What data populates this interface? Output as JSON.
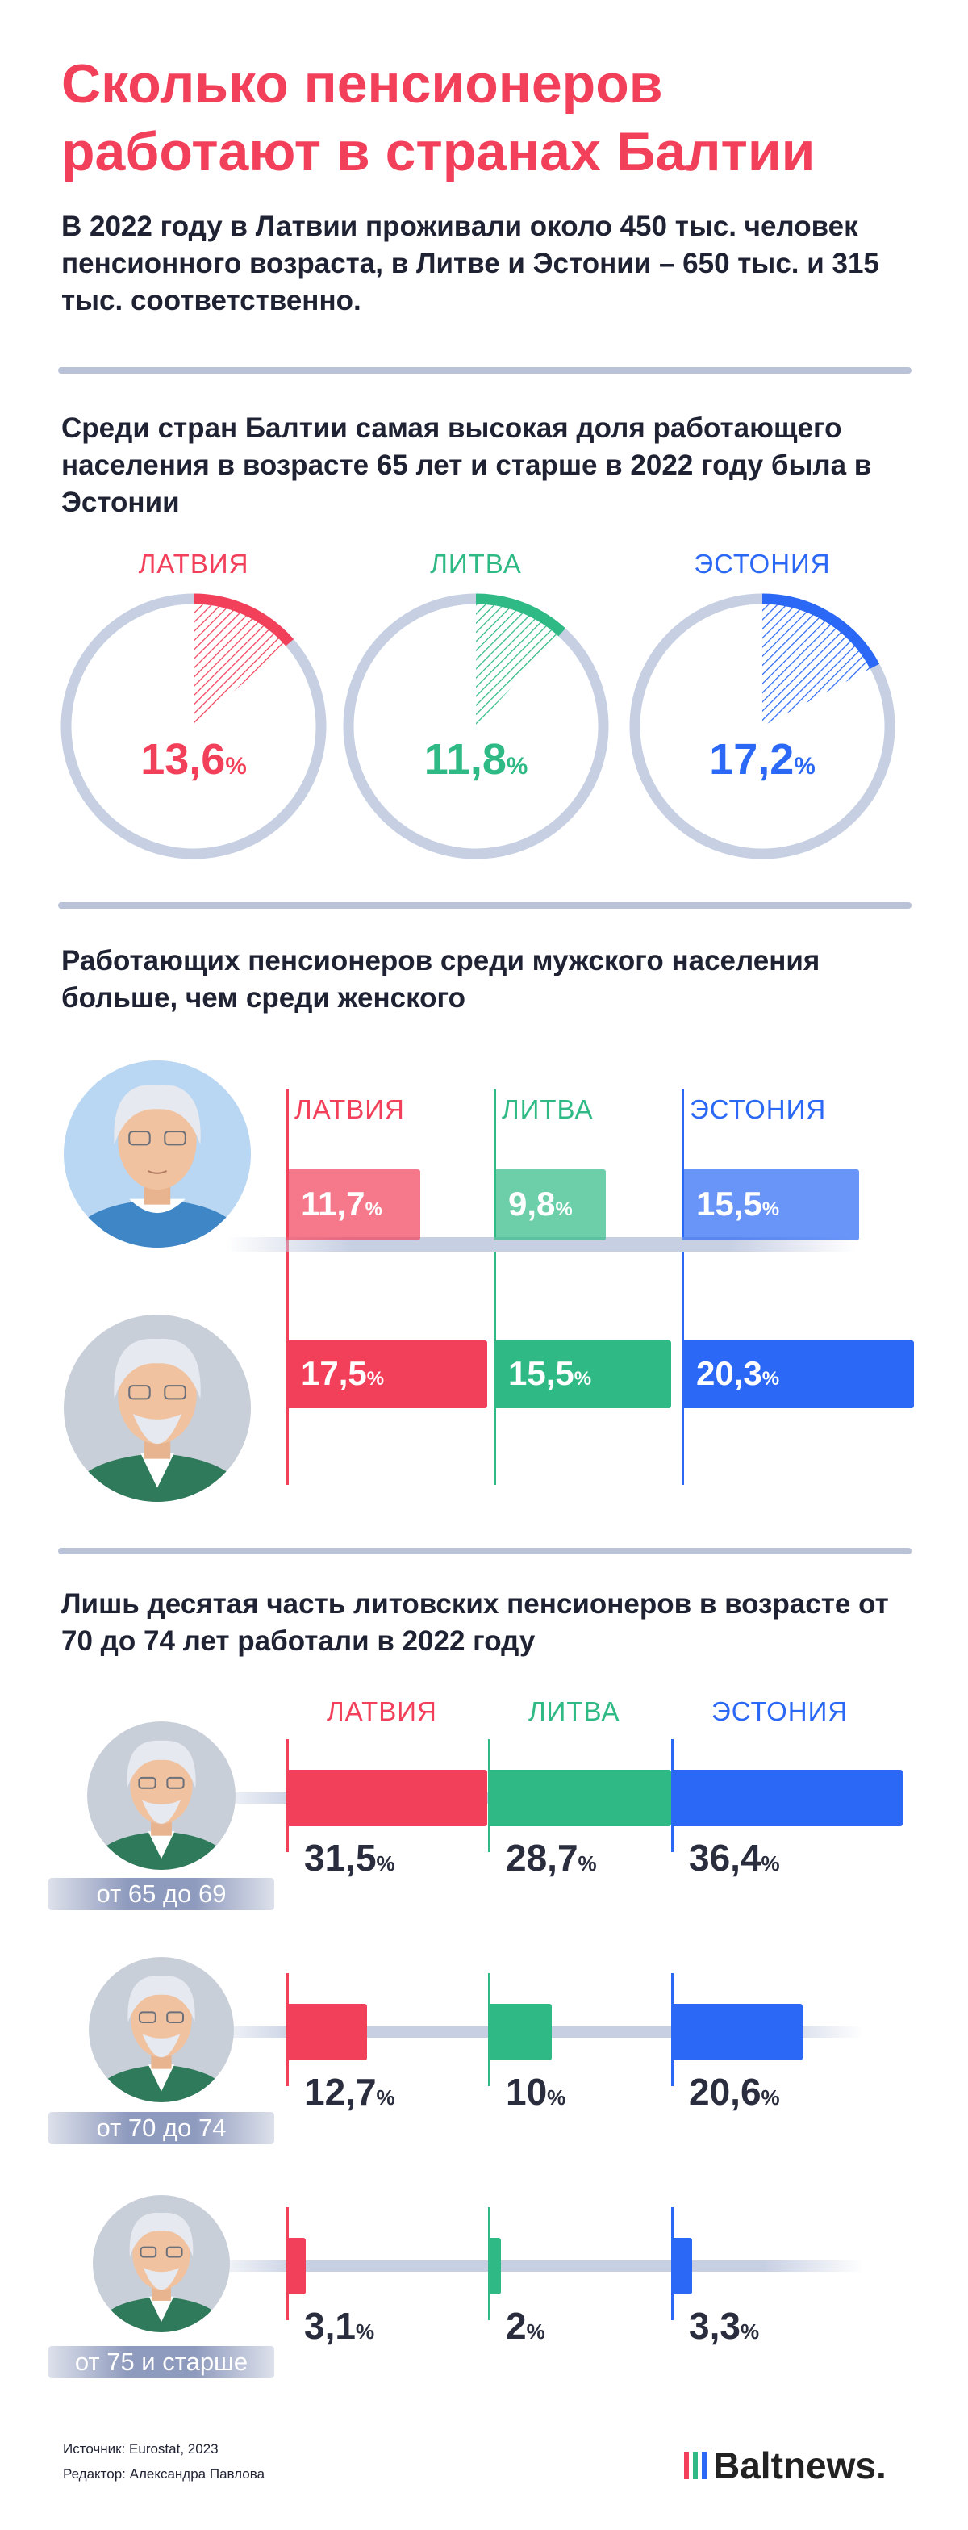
{
  "title": "Сколько пенсионеров работают в странах Балтии",
  "intro": "В 2022 году в Латвии проживали около 450 тыс. человек пенсионного возраста, в Литве и Эстонии – 650 тыс. и 315 тыс. соответственно.",
  "section1": {
    "title": "Среди стран Балтии самая высокая доля работающего населения в возрасте 65 лет и старше в 2022 году была в Эстонии"
  },
  "section2": {
    "title": "Работающих пенсионеров среди мужского населения больше, чем среди женского"
  },
  "section3": {
    "title": "Лишь десятая часть литовских пенсионеров в возрасте от 70 до 74 лет работали в 2022 году"
  },
  "countries": [
    "ЛАТВИЯ",
    "ЛИТВА",
    "ЭСТОНИЯ"
  ],
  "colors": {
    "latvia": "#f2405a",
    "lithuania": "#2fba85",
    "estonia": "#2a68f5",
    "track": "#c7d0e3",
    "divider": "#b9c2d6"
  },
  "percent_sign": "%",
  "chart_data": [
    {
      "type": "pie",
      "categories": [
        "ЛАТВИЯ",
        "ЛИТВА",
        "ЭСТОНИЯ"
      ],
      "values": [
        13.6,
        11.8,
        17.2
      ],
      "display": [
        "13,6",
        "11,8",
        "17,2"
      ],
      "title": "Среди стран Балтии самая высокая доля работающего населения в возрасте 65 лет и старше в 2022 году была в Эстонии"
    },
    {
      "type": "bar",
      "categories": [
        "ЛАТВИЯ",
        "ЛИТВА",
        "ЭСТОНИЯ"
      ],
      "series": [
        {
          "values": [
            11.7,
            9.8,
            15.5
          ],
          "display": [
            "11,7",
            "9,8",
            "15,5"
          ],
          "icon": "grandmother-icon"
        },
        {
          "values": [
            17.5,
            15.5,
            20.3
          ],
          "display": [
            "17,5",
            "15,5",
            "20,3"
          ],
          "icon": "grandfather-icon"
        }
      ],
      "title": "Работающих пенсионеров среди мужского населения больше, чем среди женского"
    },
    {
      "type": "bar",
      "categories": [
        "ЛАТВИЯ",
        "ЛИТВА",
        "ЭСТОНИЯ"
      ],
      "series": [
        {
          "name": "от 65 до 69",
          "values": [
            31.5,
            28.7,
            36.4
          ],
          "display": [
            "31,5",
            "28,7",
            "36,4"
          ]
        },
        {
          "name": "от 70 до 74",
          "values": [
            12.7,
            10,
            20.6
          ],
          "display": [
            "12,7",
            "10",
            "20,6"
          ]
        },
        {
          "name": "от 75 и старше",
          "values": [
            3.1,
            2,
            3.3
          ],
          "display": [
            "3,1",
            "2",
            "3,3"
          ]
        }
      ],
      "title": "Лишь десятая часть литовских пенсионеров в возрасте от 70 до 74 лет работали в 2022 году"
    }
  ],
  "footer": {
    "source": "Источник: Eurostat, 2023",
    "editor": "Редактор: Александра Павлова",
    "logo": "Baltnews."
  }
}
